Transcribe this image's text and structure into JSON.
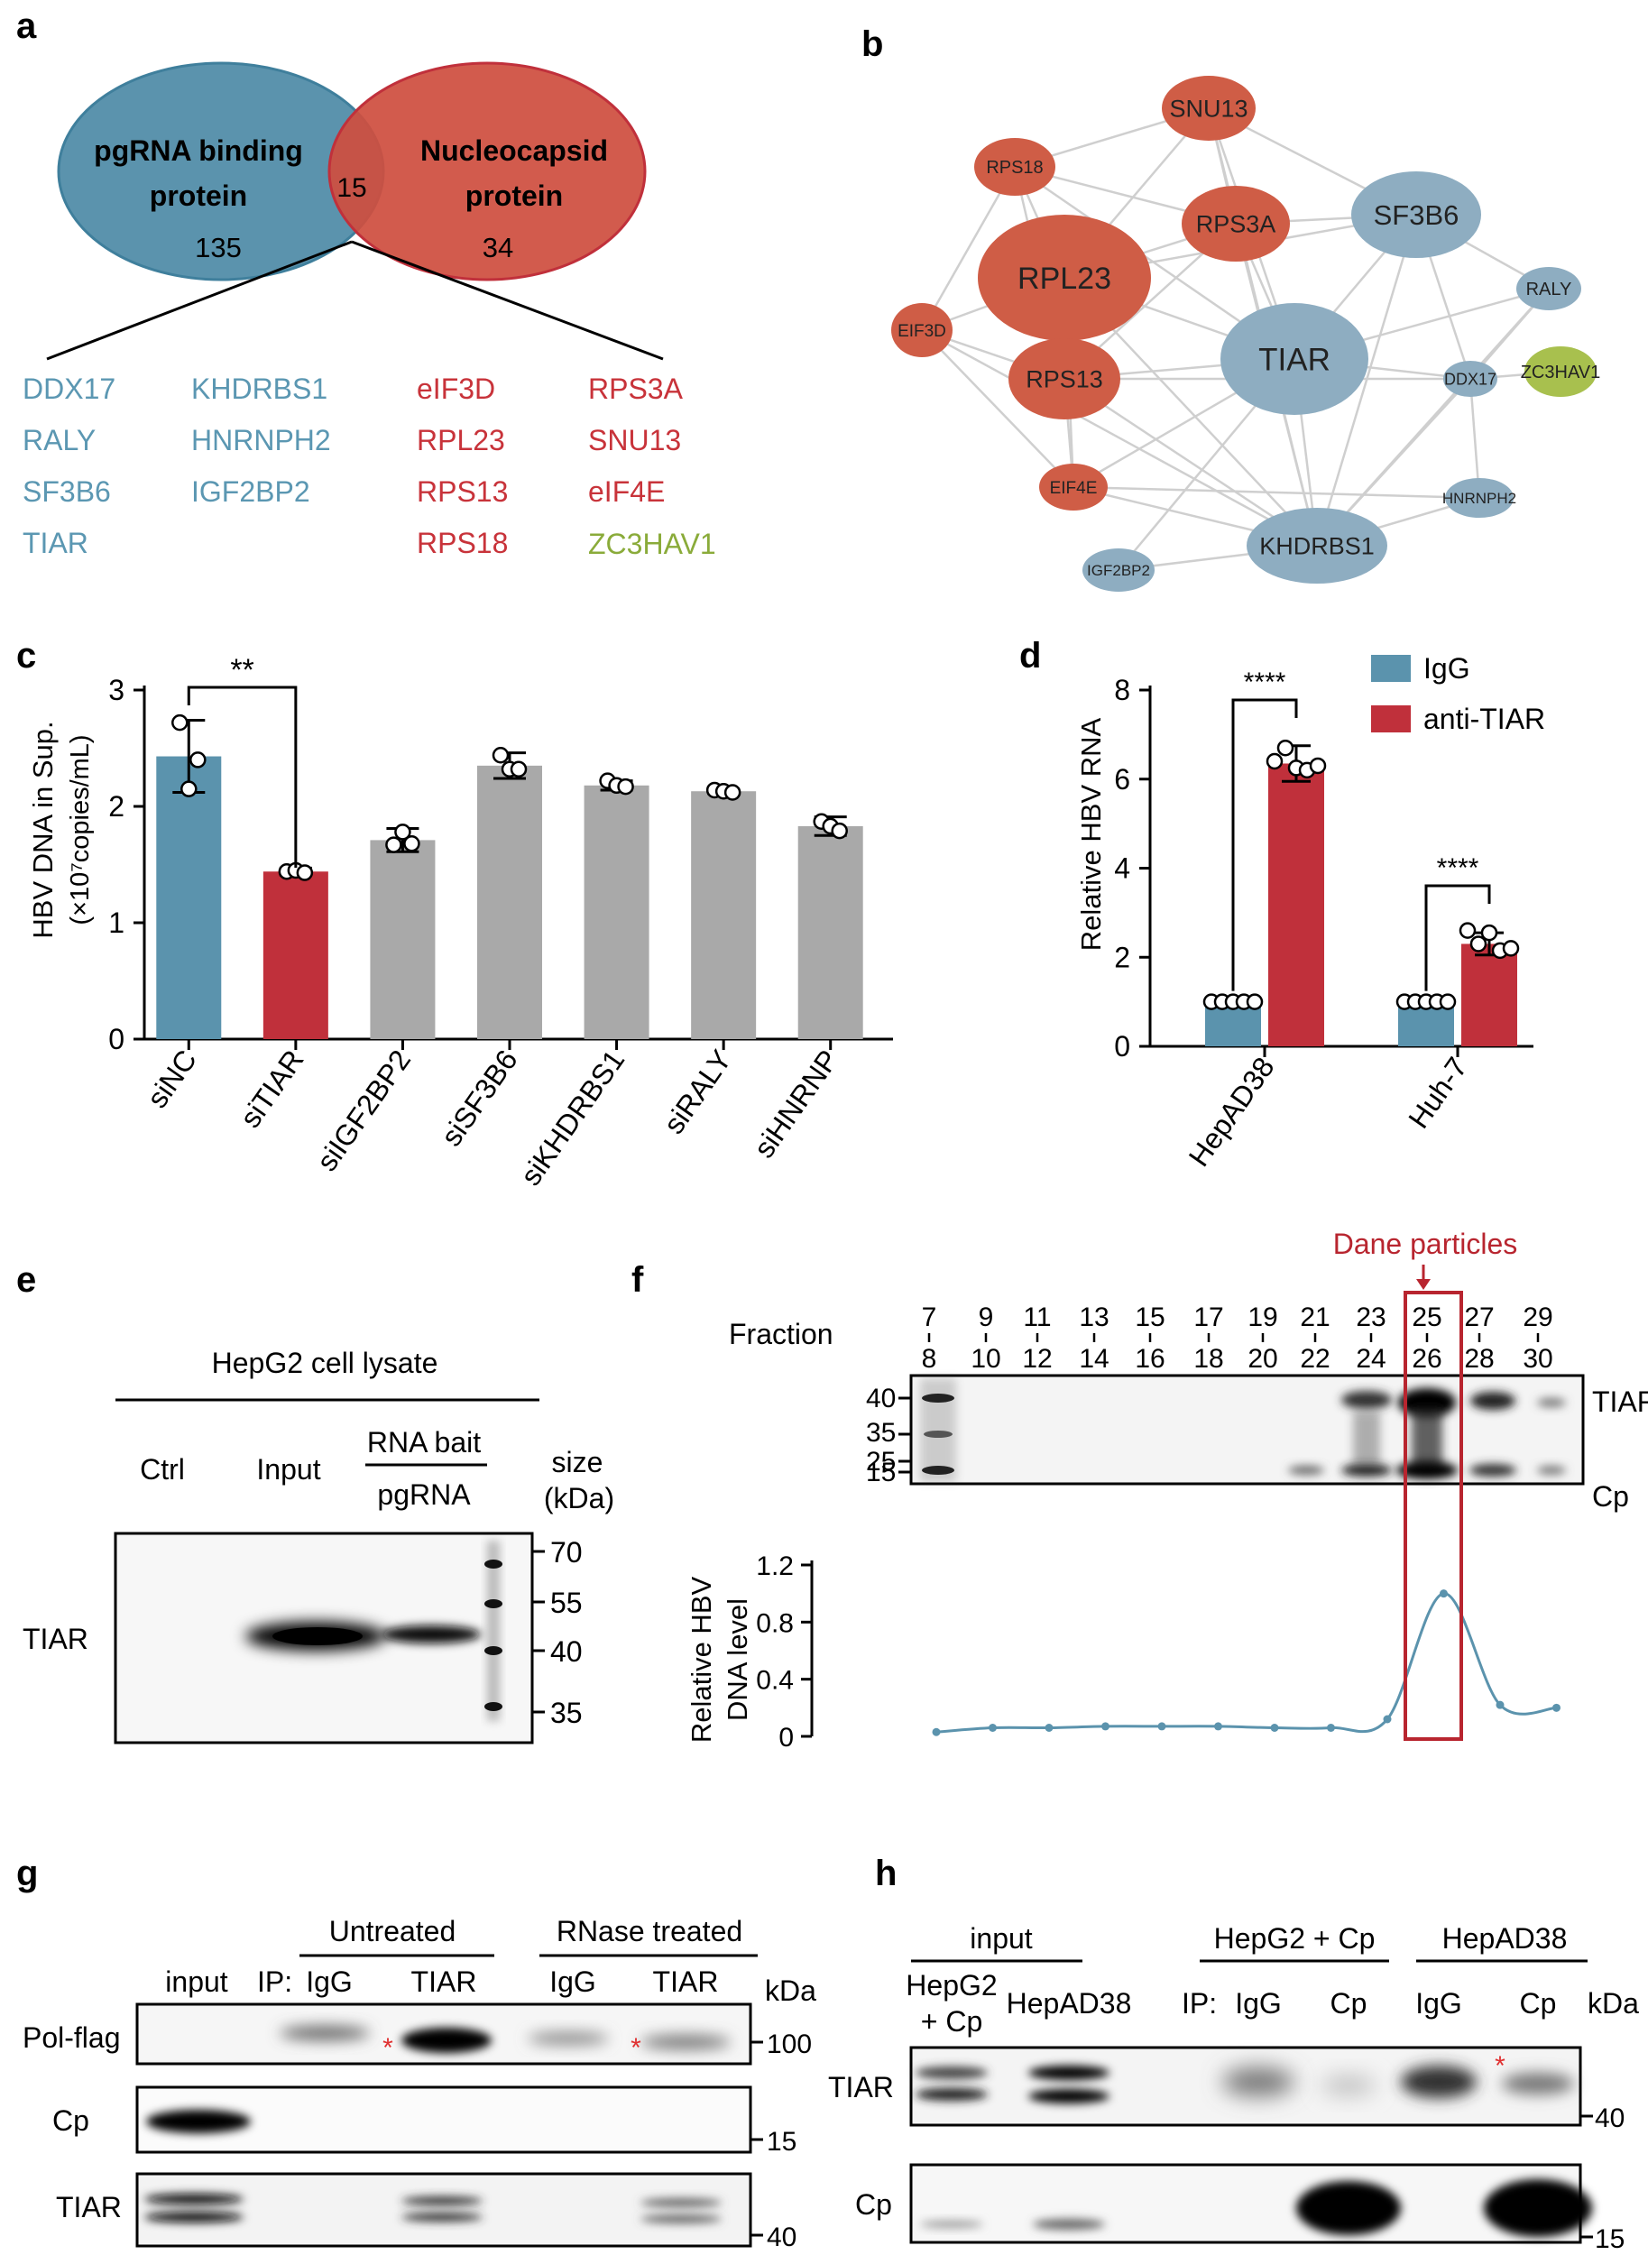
{
  "panel_letters": [
    "a",
    "b",
    "c",
    "d",
    "e",
    "f",
    "g",
    "h"
  ],
  "panel_a": {
    "left": {
      "line1": "pgRNA binding",
      "line2": "protein",
      "count": "135"
    },
    "right": {
      "line1": "Nucleocapsid",
      "line2": "protein",
      "count": "34"
    },
    "overlap": "15",
    "columns": [
      {
        "color": "#5b97b2",
        "items": [
          "DDX17",
          "RALY",
          "SF3B6",
          "TIAR"
        ]
      },
      {
        "color": "#5b97b2",
        "items": [
          "KHDRBS1",
          "HNRNPH2",
          "IGF2BP2"
        ]
      },
      {
        "color": "#c8333a",
        "items": [
          "eIF3D",
          "RPL23",
          "RPS13",
          "RPS18"
        ]
      },
      {
        "color": "#c8333a",
        "items": [
          "RPS3A",
          "SNU13",
          "eIF4E"
        ]
      },
      {
        "color": "#8aab3a",
        "items": [
          "ZC3HAV1"
        ]
      }
    ]
  },
  "panel_b": {
    "colors": {
      "red": "#cf5d46",
      "blue": "#8eadc1",
      "green": "#a8c04e"
    },
    "nodes": [
      "SNU13",
      "RPS18",
      "RPS3A",
      "SF3B6",
      "RPL23",
      "RALY",
      "EIF3D",
      "TIAR",
      "RPS13",
      "DDX17",
      "ZC3HAV1",
      "EIF4E",
      "HNRNPH2",
      "KHDRBS1",
      "IGF2BP2"
    ]
  },
  "panel_c": {
    "ylabel1": "HBV DNA in Sup.",
    "ylabel2": "(×10⁷copies/mL)",
    "significance": "**",
    "chart_data": {
      "type": "bar",
      "categories": [
        "siNC",
        "siTIAR",
        "siIGF2BP2",
        "siSF3B6",
        "siKHDRBS1",
        "siRALY",
        "siHNRNP"
      ],
      "values": [
        2.43,
        1.44,
        1.71,
        2.35,
        2.18,
        2.13,
        1.83
      ],
      "errors": [
        0.31,
        0.03,
        0.1,
        0.11,
        0.04,
        0.02,
        0.08
      ],
      "points": [
        [
          2.72,
          2.15,
          2.4
        ],
        [
          1.44,
          1.45,
          1.43
        ],
        [
          1.67,
          1.78,
          1.68
        ],
        [
          2.44,
          2.32,
          2.32
        ],
        [
          2.22,
          2.18,
          2.17
        ],
        [
          2.14,
          2.13,
          2.12
        ],
        [
          1.87,
          1.83,
          1.79
        ]
      ],
      "colors": [
        "#5b93ad",
        "#c0303b",
        "#a9a9a9",
        "#a9a9a9",
        "#a9a9a9",
        "#a9a9a9",
        "#a9a9a9"
      ],
      "yticks": [
        "0",
        "1",
        "2",
        "3"
      ],
      "ylim": [
        0,
        3
      ]
    }
  },
  "panel_d": {
    "ylabel": "Relative HBV RNA",
    "significance": [
      "****",
      "****"
    ],
    "chart_data": {
      "type": "bar",
      "categories": [
        "HepAD38",
        "Huh-7"
      ],
      "series": [
        {
          "name": "IgG",
          "color": "#5b93ad",
          "values": [
            1.0,
            1.0
          ],
          "errors": [
            0.05,
            0.05
          ],
          "points": [
            [
              1.0,
              1.0,
              1.0,
              1.0,
              1.0
            ],
            [
              1.0,
              1.0,
              1.0,
              1.0,
              1.0
            ]
          ]
        },
        {
          "name": "anti-TIAR",
          "color": "#c0303b",
          "values": [
            6.35,
            2.3
          ],
          "errors": [
            0.4,
            0.25
          ],
          "points": [
            [
              6.4,
              6.7,
              6.25,
              6.2,
              6.3
            ],
            [
              2.6,
              2.3,
              2.55,
              2.15,
              2.2
            ]
          ]
        }
      ],
      "yticks": [
        "0",
        "2",
        "4",
        "6",
        "8"
      ],
      "ylim": [
        0,
        8
      ]
    }
  },
  "panel_e": {
    "header": "HepG2 cell lysate",
    "lanes": [
      "Ctrl",
      "Input"
    ],
    "rna_bait": "RNA bait",
    "pgrna": "pgRNA",
    "size_label": "size",
    "kda_label": "(kDa)",
    "row_label": "TIAR",
    "markers": [
      "70",
      "55",
      "40",
      "35"
    ]
  },
  "panel_f": {
    "fraction_label": "Fraction",
    "fractions_top": [
      "7",
      "9",
      "11",
      "13",
      "15",
      "17",
      "19",
      "21",
      "23",
      "25",
      "27",
      "29"
    ],
    "fractions_bottom": [
      "8",
      "10",
      "12",
      "14",
      "16",
      "18",
      "20",
      "22",
      "24",
      "26",
      "28",
      "30"
    ],
    "dane_label": "Dane particles",
    "markers": [
      "40",
      "35",
      "25",
      "15"
    ],
    "bands": [
      "TIAR",
      "Cp"
    ],
    "ylabel1": "Relative HBV",
    "ylabel2": "DNA level",
    "chart_data": {
      "type": "line",
      "x": [
        "7-8",
        "9-10",
        "11-12",
        "13-14",
        "15-16",
        "17-18",
        "19-20",
        "21-22",
        "23-24",
        "25-26",
        "27-28",
        "29-30"
      ],
      "y": [
        0.03,
        0.06,
        0.06,
        0.07,
        0.07,
        0.07,
        0.06,
        0.06,
        0.12,
        1.0,
        0.22,
        0.2
      ],
      "yticks": [
        "0",
        "0.4",
        "0.8",
        "1.2"
      ],
      "ylim": [
        0,
        1.2
      ],
      "color": "#5b93ad"
    }
  },
  "panel_g": {
    "untreated": "Untreated",
    "rnase": "RNase treated",
    "lanes": [
      "input",
      "IP:",
      "IgG",
      "TIAR",
      "IgG",
      "TIAR"
    ],
    "kda": "kDa",
    "rows": [
      "Pol-flag",
      "Cp",
      "TIAR"
    ],
    "markers": [
      "100",
      "15",
      "40"
    ],
    "asterisk": "*"
  },
  "panel_h": {
    "input": "input",
    "hepg2cp": "HepG2 + Cp",
    "hepad38": "HepAD38",
    "lane1a": "HepG2",
    "lane1b": "+ Cp",
    "lane2": "HepAD38",
    "ip": "IP:",
    "lanes": [
      "IgG",
      "Cp",
      "IgG",
      "Cp"
    ],
    "kda": "kDa",
    "rows": [
      "TIAR",
      "Cp"
    ],
    "markers": [
      "40",
      "15"
    ],
    "asterisk": "*"
  }
}
